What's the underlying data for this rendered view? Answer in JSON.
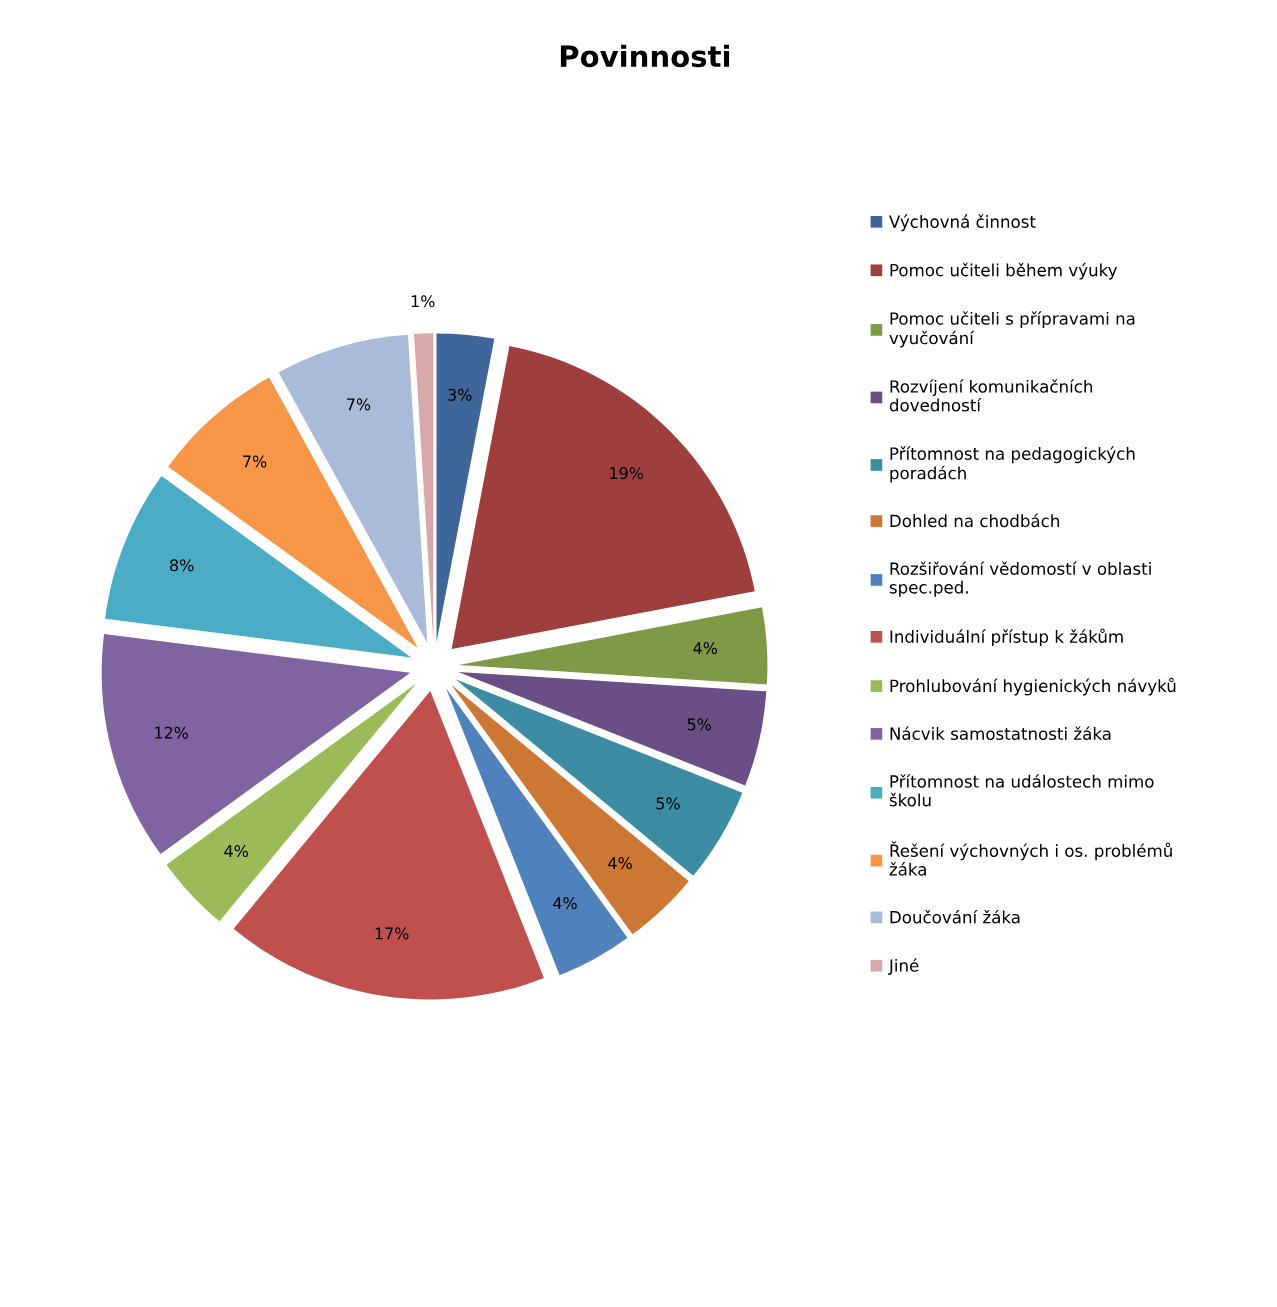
{
  "chart_data": {
    "type": "pie",
    "title": "Povinnosti",
    "categories": [
      "Výchovná činnost",
      "Pomoc učiteli během výuky",
      "Pomoc učiteli s přípravami na\nvyučování",
      "Rozvíjení komunikačních\ndovedností",
      "Přítomnost na pedagogických\nporadách",
      "Dohled na chodbách",
      "Rozšiřování vědomostí v oblasti\nspec.ped.",
      "Individuální přístup k žákům",
      "Prohlubování hygienických návyků",
      "Nácvik samostatnosti žáka",
      "Přítomnost na událostech mimo\nškolu",
      "Řešení výchovných i os. problémů\nžáka",
      "Doučování žáka",
      "Jiné"
    ],
    "values": [
      3,
      19,
      4,
      5,
      5,
      4,
      4,
      17,
      4,
      12,
      8,
      7,
      7,
      1
    ],
    "value_labels": [
      "3%",
      "19%",
      "4%",
      "5%",
      "5%",
      "4%",
      "4%",
      "17%",
      "4%",
      "12%",
      "8%",
      "7%",
      "7%",
      "1%"
    ],
    "colors": [
      "#3f6699",
      "#9e3f3d",
      "#7e9a46",
      "#6a4f86",
      "#3c8ca3",
      "#cc7834",
      "#4f81bd",
      "#c0504d",
      "#9bbb59",
      "#8064a2",
      "#4bacc6",
      "#f79646",
      "#aabbd9",
      "#d9a8a8"
    ],
    "legend": "right"
  }
}
